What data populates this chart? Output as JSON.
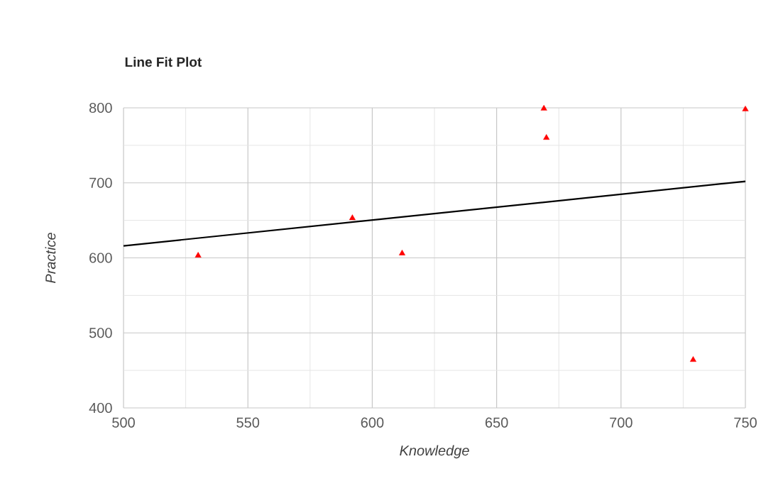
{
  "chart_data": {
    "type": "scatter",
    "title": "Line Fit Plot",
    "xlabel": "Knowledge",
    "ylabel": "Practice",
    "xlim": [
      500,
      750
    ],
    "ylim": [
      400,
      800
    ],
    "xticks": [
      500,
      550,
      600,
      650,
      700,
      750
    ],
    "yticks": [
      400,
      500,
      600,
      700,
      800
    ],
    "grid": true,
    "marker": "triangle",
    "series": [
      {
        "color": "#ff0000",
        "x": [
          530,
          592,
          612,
          669,
          670,
          729,
          750
        ],
        "values": [
          603,
          653,
          606,
          799,
          760,
          464,
          798
        ]
      },
      {
        "type": "line",
        "color": "#000000",
        "marker": "none",
        "line_style": "solid",
        "x": [
          500,
          750
        ],
        "values": [
          616,
          702
        ]
      }
    ]
  }
}
